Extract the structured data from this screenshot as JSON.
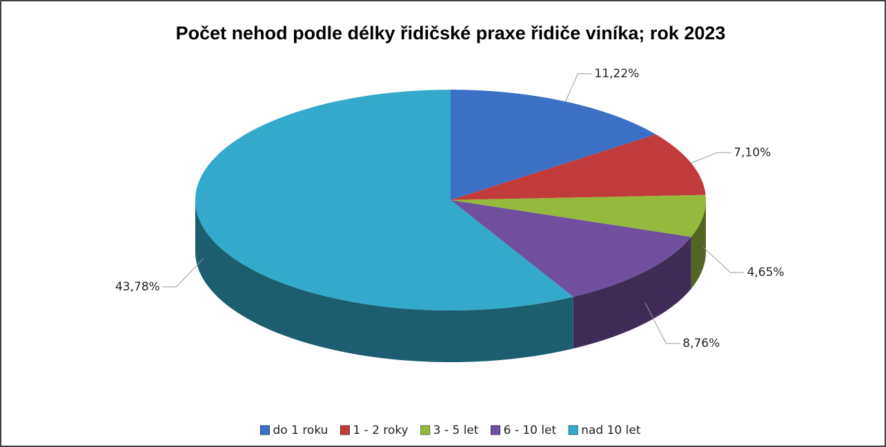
{
  "chart_data": {
    "type": "pie",
    "title": "Počet nehod podle délky řidičské praxe řidiče viníka; rok 2023",
    "categories": [
      "do 1 roku",
      "1 - 2 roky",
      "3 - 5 let",
      "6 - 10 let",
      "nad 10 let"
    ],
    "values": [
      11.22,
      7.1,
      4.65,
      8.76,
      43.78
    ],
    "value_labels": [
      "11,22%",
      "7,10%",
      "4,65%",
      "8,76%",
      "43,78%"
    ],
    "colors": [
      "#3b70c4",
      "#c23b3b",
      "#95b93c",
      "#70509e",
      "#33aacb"
    ],
    "legend": "bottom"
  }
}
